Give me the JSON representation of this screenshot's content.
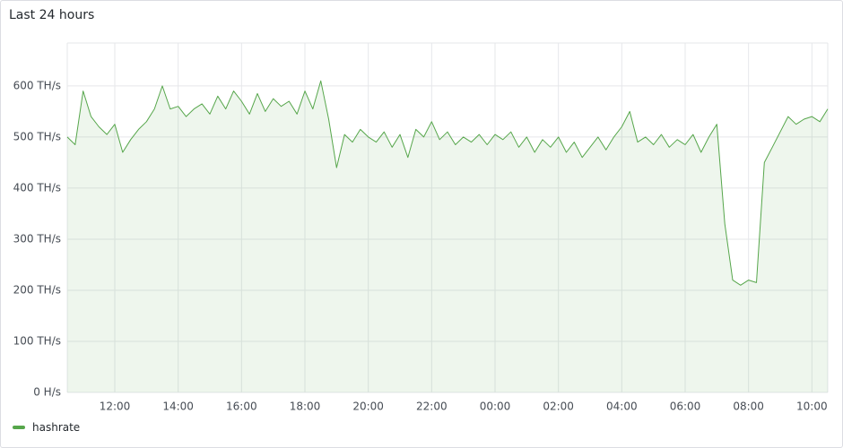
{
  "chart_data": {
    "type": "line",
    "title": "Last 24 hours",
    "x": [
      10.5,
      10.75,
      11,
      11.25,
      11.5,
      11.75,
      12,
      12.25,
      12.5,
      12.75,
      13,
      13.25,
      13.5,
      13.75,
      14,
      14.25,
      14.5,
      14.75,
      15,
      15.25,
      15.5,
      15.75,
      16,
      16.25,
      16.5,
      16.75,
      17,
      17.25,
      17.5,
      17.75,
      18,
      18.25,
      18.5,
      18.75,
      19,
      19.25,
      19.5,
      19.75,
      20,
      20.25,
      20.5,
      20.75,
      21,
      21.25,
      21.5,
      21.75,
      22,
      22.25,
      22.5,
      22.75,
      23,
      23.25,
      23.5,
      23.75,
      24,
      24.25,
      24.5,
      24.75,
      25,
      25.25,
      25.5,
      25.75,
      26,
      26.25,
      26.5,
      26.75,
      27,
      27.25,
      27.5,
      27.75,
      28,
      28.25,
      28.5,
      28.75,
      29,
      29.25,
      29.5,
      29.75,
      30,
      30.25,
      30.5,
      30.75,
      31,
      31.25,
      31.5,
      31.75,
      32,
      32.25,
      32.5,
      32.75,
      33,
      33.25,
      33.5,
      33.75,
      34,
      34.25,
      34.5
    ],
    "series": [
      {
        "name": "hashrate",
        "color": "#56a64b",
        "values": [
          500,
          485,
          590,
          540,
          520,
          505,
          525,
          470,
          495,
          515,
          530,
          555,
          600,
          555,
          560,
          540,
          555,
          565,
          545,
          580,
          555,
          590,
          570,
          545,
          585,
          550,
          575,
          560,
          570,
          545,
          590,
          555,
          610,
          535,
          440,
          505,
          490,
          515,
          500,
          490,
          510,
          480,
          505,
          460,
          515,
          500,
          530,
          495,
          510,
          485,
          500,
          490,
          505,
          485,
          505,
          495,
          510,
          480,
          500,
          470,
          495,
          480,
          500,
          470,
          490,
          460,
          480,
          500,
          475,
          500,
          520,
          550,
          490,
          500,
          485,
          505,
          480,
          495,
          485,
          505,
          470,
          500,
          525,
          330,
          220,
          210,
          220,
          215,
          450,
          480,
          510,
          540,
          525,
          535,
          540,
          530,
          555
        ]
      }
    ],
    "xlim": [
      10.5,
      34.5
    ],
    "xticks": [
      {
        "value": 12,
        "label": "12:00"
      },
      {
        "value": 14,
        "label": "14:00"
      },
      {
        "value": 16,
        "label": "16:00"
      },
      {
        "value": 18,
        "label": "18:00"
      },
      {
        "value": 20,
        "label": "20:00"
      },
      {
        "value": 22,
        "label": "22:00"
      },
      {
        "value": 24,
        "label": "00:00"
      },
      {
        "value": 26,
        "label": "02:00"
      },
      {
        "value": 28,
        "label": "04:00"
      },
      {
        "value": 30,
        "label": "06:00"
      },
      {
        "value": 32,
        "label": "08:00"
      },
      {
        "value": 34,
        "label": "10:00"
      }
    ],
    "ylim": [
      0,
      684
    ],
    "yticks": [
      {
        "value": 0,
        "label": "0 H/s"
      },
      {
        "value": 100,
        "label": "100 TH/s"
      },
      {
        "value": 200,
        "label": "200 TH/s"
      },
      {
        "value": 300,
        "label": "300 TH/s"
      },
      {
        "value": 400,
        "label": "400 TH/s"
      },
      {
        "value": 500,
        "label": "500 TH/s"
      },
      {
        "value": 600,
        "label": "600 TH/s"
      }
    ],
    "grid": true
  }
}
